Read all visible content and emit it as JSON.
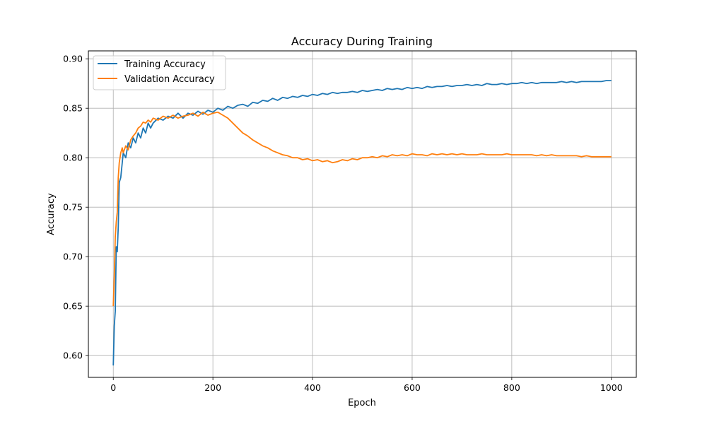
{
  "chart_data": {
    "type": "line",
    "title": "Accuracy During Training",
    "xlabel": "Epoch",
    "ylabel": "Accuracy",
    "xlim": [
      -50,
      1050
    ],
    "ylim": [
      0.578,
      0.908
    ],
    "xticks": [
      0,
      200,
      400,
      600,
      800,
      1000
    ],
    "yticks": [
      0.6,
      0.65,
      0.7,
      0.75,
      0.8,
      0.85,
      0.9
    ],
    "xtick_labels": [
      "0",
      "200",
      "400",
      "600",
      "800",
      "1000"
    ],
    "ytick_labels": [
      "0.60",
      "0.65",
      "0.70",
      "0.75",
      "0.80",
      "0.85",
      "0.90"
    ],
    "grid": true,
    "legend_position": "upper-left",
    "series": [
      {
        "name": "Training Accuracy",
        "color": "#1f77b4",
        "x": [
          0,
          2,
          4,
          6,
          8,
          10,
          12,
          15,
          18,
          20,
          25,
          30,
          35,
          40,
          45,
          50,
          55,
          60,
          65,
          70,
          75,
          80,
          90,
          100,
          110,
          120,
          130,
          140,
          150,
          160,
          170,
          180,
          190,
          200,
          210,
          220,
          230,
          240,
          250,
          260,
          270,
          280,
          290,
          300,
          310,
          320,
          330,
          340,
          350,
          360,
          370,
          380,
          390,
          400,
          410,
          420,
          430,
          440,
          450,
          460,
          470,
          480,
          490,
          500,
          510,
          520,
          530,
          540,
          550,
          560,
          570,
          580,
          590,
          600,
          610,
          620,
          630,
          640,
          650,
          660,
          670,
          680,
          690,
          700,
          710,
          720,
          730,
          740,
          750,
          760,
          770,
          780,
          790,
          800,
          810,
          820,
          830,
          840,
          850,
          860,
          870,
          880,
          890,
          900,
          910,
          920,
          930,
          940,
          950,
          960,
          970,
          980,
          990,
          1000
        ],
        "y": [
          0.59,
          0.63,
          0.645,
          0.71,
          0.705,
          0.73,
          0.775,
          0.78,
          0.795,
          0.805,
          0.8,
          0.815,
          0.81,
          0.82,
          0.815,
          0.825,
          0.82,
          0.83,
          0.825,
          0.835,
          0.83,
          0.835,
          0.84,
          0.838,
          0.842,
          0.84,
          0.845,
          0.84,
          0.845,
          0.843,
          0.847,
          0.844,
          0.848,
          0.846,
          0.85,
          0.848,
          0.852,
          0.85,
          0.853,
          0.854,
          0.852,
          0.856,
          0.855,
          0.858,
          0.857,
          0.86,
          0.858,
          0.861,
          0.86,
          0.862,
          0.861,
          0.863,
          0.862,
          0.864,
          0.863,
          0.865,
          0.864,
          0.866,
          0.865,
          0.866,
          0.866,
          0.867,
          0.866,
          0.868,
          0.867,
          0.868,
          0.869,
          0.868,
          0.87,
          0.869,
          0.87,
          0.869,
          0.871,
          0.87,
          0.871,
          0.87,
          0.872,
          0.871,
          0.872,
          0.872,
          0.873,
          0.872,
          0.873,
          0.873,
          0.874,
          0.873,
          0.874,
          0.873,
          0.875,
          0.874,
          0.874,
          0.875,
          0.874,
          0.875,
          0.875,
          0.876,
          0.875,
          0.876,
          0.875,
          0.876,
          0.876,
          0.876,
          0.876,
          0.877,
          0.876,
          0.877,
          0.876,
          0.877,
          0.877,
          0.877,
          0.877,
          0.877,
          0.878,
          0.878
        ]
      },
      {
        "name": "Validation Accuracy",
        "color": "#ff7f0e",
        "x": [
          0,
          2,
          4,
          6,
          8,
          10,
          12,
          15,
          18,
          20,
          25,
          30,
          35,
          40,
          45,
          50,
          55,
          60,
          65,
          70,
          75,
          80,
          90,
          100,
          110,
          120,
          130,
          140,
          150,
          160,
          170,
          180,
          190,
          200,
          210,
          220,
          230,
          240,
          250,
          260,
          270,
          280,
          290,
          300,
          310,
          320,
          330,
          340,
          350,
          360,
          370,
          380,
          390,
          400,
          410,
          420,
          430,
          440,
          450,
          460,
          470,
          480,
          490,
          500,
          510,
          520,
          530,
          540,
          550,
          560,
          570,
          580,
          590,
          600,
          610,
          620,
          630,
          640,
          650,
          660,
          670,
          680,
          690,
          700,
          710,
          720,
          730,
          740,
          750,
          760,
          770,
          780,
          790,
          800,
          810,
          820,
          830,
          840,
          850,
          860,
          870,
          880,
          890,
          900,
          910,
          920,
          930,
          940,
          950,
          960,
          970,
          980,
          990,
          1000
        ],
        "y": [
          0.65,
          0.68,
          0.72,
          0.735,
          0.745,
          0.78,
          0.795,
          0.805,
          0.81,
          0.805,
          0.812,
          0.808,
          0.818,
          0.822,
          0.825,
          0.83,
          0.832,
          0.836,
          0.835,
          0.838,
          0.836,
          0.84,
          0.838,
          0.842,
          0.84,
          0.843,
          0.84,
          0.842,
          0.843,
          0.845,
          0.842,
          0.846,
          0.843,
          0.845,
          0.846,
          0.843,
          0.84,
          0.835,
          0.83,
          0.825,
          0.822,
          0.818,
          0.815,
          0.812,
          0.81,
          0.807,
          0.805,
          0.803,
          0.802,
          0.8,
          0.8,
          0.798,
          0.799,
          0.797,
          0.798,
          0.796,
          0.797,
          0.795,
          0.796,
          0.798,
          0.797,
          0.799,
          0.798,
          0.8,
          0.8,
          0.801,
          0.8,
          0.802,
          0.801,
          0.803,
          0.802,
          0.803,
          0.802,
          0.804,
          0.803,
          0.803,
          0.802,
          0.804,
          0.803,
          0.804,
          0.803,
          0.804,
          0.803,
          0.804,
          0.803,
          0.803,
          0.803,
          0.804,
          0.803,
          0.803,
          0.803,
          0.803,
          0.804,
          0.803,
          0.803,
          0.803,
          0.803,
          0.803,
          0.802,
          0.803,
          0.802,
          0.803,
          0.802,
          0.802,
          0.802,
          0.802,
          0.802,
          0.801,
          0.802,
          0.801,
          0.801,
          0.801,
          0.801,
          0.801
        ]
      }
    ]
  }
}
